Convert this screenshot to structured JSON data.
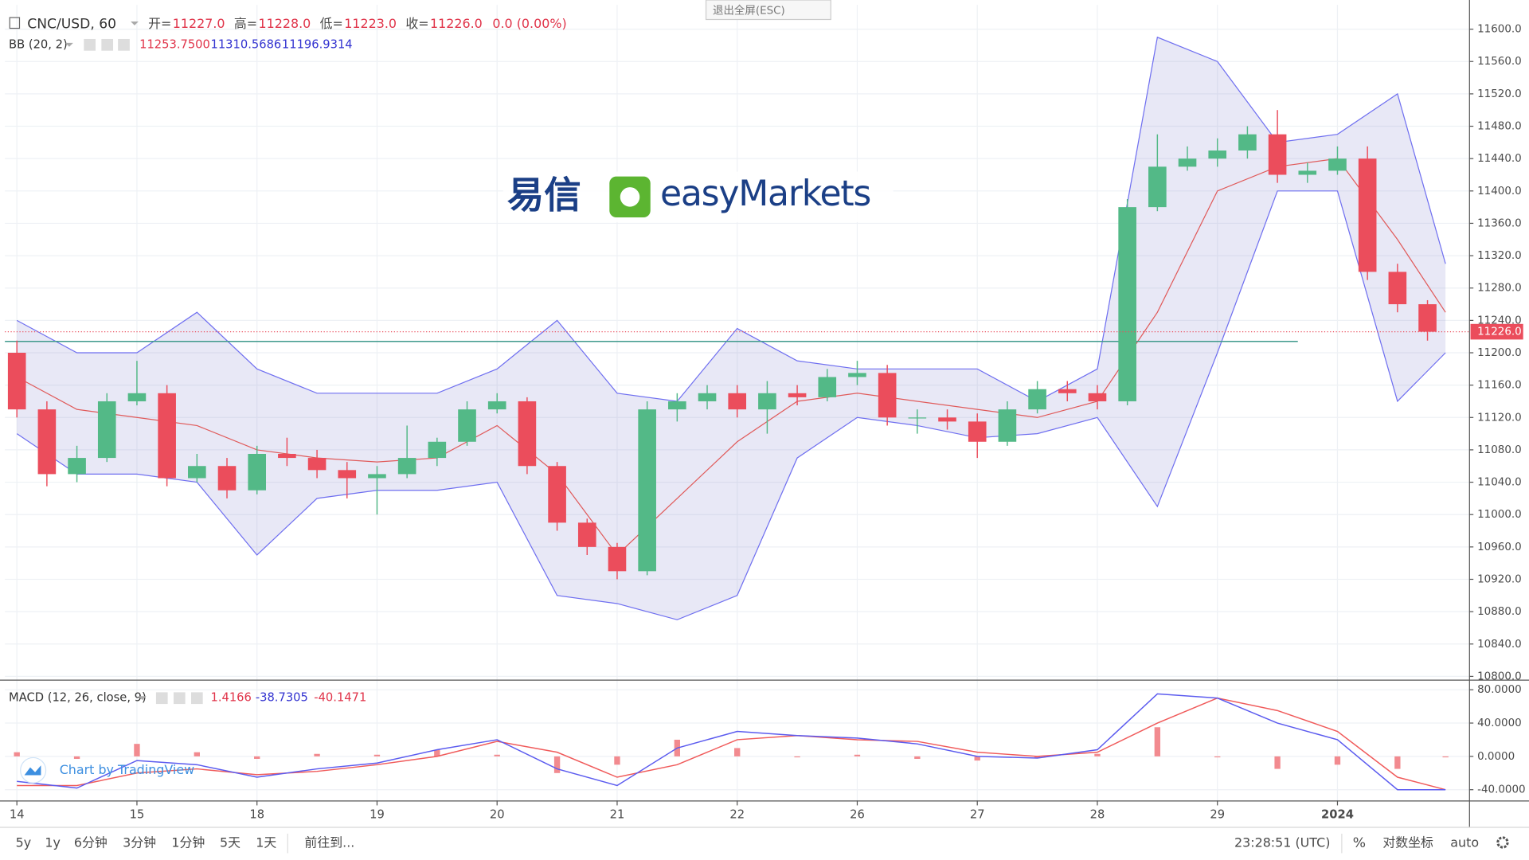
{
  "header": {
    "exit_fullscreen": "退出全屏(ESC)"
  },
  "logo": {
    "chinese": "易信",
    "brand": "easyMarkets"
  },
  "watermark": "Chart by TradingView",
  "toolbar": {
    "ranges": [
      "5y",
      "1y",
      "6分钟",
      "3分钟",
      "1分钟",
      "5天",
      "1天"
    ],
    "goto": "前往到...",
    "time": "23:28:51 (UTC)",
    "percent": "%",
    "log": "对数坐标",
    "auto": "auto"
  },
  "chart_data": [
    {
      "type": "candlestick",
      "title": "CNC/USD, 60",
      "ohlc_labels": [
        "开=",
        "高=",
        "低=",
        "收="
      ],
      "ohlc_values": [
        {
          "value": 11227,
          "label": "11227.0"
        },
        {
          "value": 11228,
          "label": "11228.0"
        },
        {
          "value": 11223,
          "label": "11223.0"
        },
        {
          "value": 11226,
          "label": "11226.0"
        }
      ],
      "change": "0.0 (0.00%)",
      "x": [
        0,
        0.25,
        0.5,
        0.75,
        1,
        1.25,
        1.5,
        1.75,
        2,
        2.25,
        2.5,
        2.75,
        3,
        3.25,
        3.5,
        3.75,
        4,
        4.25,
        4.5,
        4.75,
        5,
        5.25,
        5.5,
        5.75,
        6,
        6.25,
        6.5,
        6.75,
        7,
        7.25,
        7.5,
        7.75,
        8,
        8.25,
        8.5,
        8.75,
        9,
        9.25,
        9.5,
        9.75,
        10,
        10.25,
        10.5,
        10.75,
        11,
        11.25,
        11.5,
        11.75
      ],
      "open": [
        11200,
        11130,
        11050,
        11070,
        11140,
        11150,
        11045,
        11060,
        11030,
        11075,
        11070,
        11055,
        11045,
        11050,
        11070,
        11090,
        11130,
        11140,
        11060,
        10990,
        10960,
        10930,
        11130,
        11140,
        11150,
        11130,
        11150,
        11145,
        11170,
        11175,
        11120,
        11120,
        11115,
        11090,
        11130,
        11155,
        11150,
        11140,
        11380,
        11430,
        11440,
        11450,
        11470,
        11420,
        11425,
        11440,
        11300,
        11260
      ],
      "high": [
        11215,
        11140,
        11085,
        11150,
        11190,
        11160,
        11075,
        11070,
        11085,
        11095,
        11080,
        11065,
        11060,
        11110,
        11095,
        11140,
        11150,
        11145,
        11065,
        10995,
        10965,
        11140,
        11150,
        11160,
        11160,
        11165,
        11160,
        11180,
        11190,
        11185,
        11130,
        11130,
        11125,
        11140,
        11165,
        11165,
        11160,
        11390,
        11470,
        11455,
        11465,
        11480,
        11500,
        11435,
        11455,
        11455,
        11310,
        11265
      ],
      "low": [
        11120,
        11035,
        11040,
        11065,
        11135,
        11035,
        11040,
        11020,
        11025,
        11060,
        11045,
        11020,
        11000,
        11045,
        11060,
        11085,
        11125,
        11050,
        10980,
        10950,
        10920,
        10925,
        11115,
        11130,
        11120,
        11100,
        11135,
        11140,
        11160,
        11110,
        11100,
        11105,
        11070,
        11085,
        11125,
        11140,
        11130,
        11135,
        11375,
        11425,
        11430,
        11440,
        11410,
        11410,
        11420,
        11290,
        11250,
        11215
      ],
      "close": [
        11130,
        11050,
        11070,
        11140,
        11150,
        11045,
        11060,
        11030,
        11075,
        11070,
        11055,
        11045,
        11050,
        11070,
        11090,
        11130,
        11140,
        11060,
        10990,
        10960,
        10930,
        11130,
        11140,
        11150,
        11130,
        11150,
        11145,
        11170,
        11175,
        11120,
        11120,
        11115,
        11090,
        11130,
        11155,
        11150,
        11140,
        11380,
        11430,
        11440,
        11450,
        11470,
        11420,
        11425,
        11440,
        11300,
        11260,
        11226
      ],
      "up_color": "#53b987",
      "down_color": "#eb4d5c",
      "bands": {
        "name": "BB (20, 2)",
        "legend_values": [
          {
            "value": 11253.75,
            "label": "11253.7500"
          },
          {
            "value": 11310.5686,
            "label": "11310.5686"
          },
          {
            "value": 11196.9314,
            "label": "11196.9314"
          }
        ],
        "x": [
          0,
          0.5,
          1,
          1.5,
          2,
          2.5,
          3,
          3.5,
          4,
          4.5,
          5,
          5.5,
          6,
          6.5,
          7,
          7.5,
          8,
          8.5,
          9,
          9.5,
          10,
          10.5,
          11,
          11.5,
          11.9
        ],
        "upper": [
          11240,
          11200,
          11200,
          11250,
          11180,
          11150,
          11150,
          11150,
          11180,
          11240,
          11150,
          11140,
          11230,
          11190,
          11180,
          11180,
          11180,
          11140,
          11180,
          11590,
          11560,
          11460,
          11470,
          11520,
          11310
        ],
        "middle": [
          11170,
          11130,
          11120,
          11110,
          11080,
          11070,
          11065,
          11070,
          11110,
          11050,
          10950,
          11020,
          11090,
          11140,
          11150,
          11140,
          11130,
          11120,
          11140,
          11250,
          11400,
          11430,
          11440,
          11340,
          11250
        ],
        "lower": [
          11100,
          11050,
          11050,
          11040,
          10950,
          11020,
          11030,
          11030,
          11040,
          10900,
          10890,
          10870,
          10900,
          11070,
          11120,
          11110,
          11095,
          11100,
          11120,
          11010,
          11200,
          11400,
          11400,
          11140,
          11200
        ],
        "band_color": "#6f6ff0",
        "middle_color": "#e05a5a",
        "fill_color": "rgba(120,120,200,0.17)"
      },
      "last_price": {
        "value": 11226,
        "label": "11226.0"
      },
      "horizontal_line": 11214,
      "horizontal_line_color": "#3f9a8c",
      "xlim": [
        -0.1,
        12.1
      ],
      "xticks": [
        {
          "value": 0,
          "label": "14"
        },
        {
          "value": 1,
          "label": "15"
        },
        {
          "value": 2,
          "label": "18"
        },
        {
          "value": 3,
          "label": "19"
        },
        {
          "value": 4,
          "label": "20"
        },
        {
          "value": 5,
          "label": "21"
        },
        {
          "value": 6,
          "label": "22"
        },
        {
          "value": 7,
          "label": "26"
        },
        {
          "value": 8,
          "label": "27"
        },
        {
          "value": 9,
          "label": "28"
        },
        {
          "value": 10,
          "label": "29"
        },
        {
          "value": 11,
          "label": "2024"
        }
      ],
      "ylim": [
        10796,
        11630
      ],
      "yticks": [
        {
          "value": 10800,
          "label": "10800.0"
        },
        {
          "value": 10840,
          "label": "10840.0"
        },
        {
          "value": 10880,
          "label": "10880.0"
        },
        {
          "value": 10920,
          "label": "10920.0"
        },
        {
          "value": 10960,
          "label": "10960.0"
        },
        {
          "value": 11000,
          "label": "11000.0"
        },
        {
          "value": 11040,
          "label": "11040.0"
        },
        {
          "value": 11080,
          "label": "11080.0"
        },
        {
          "value": 11120,
          "label": "11120.0"
        },
        {
          "value": 11160,
          "label": "11160.0"
        },
        {
          "value": 11200,
          "label": "11200.0"
        },
        {
          "value": 11240,
          "label": "11240.0"
        },
        {
          "value": 11280,
          "label": "11280.0"
        },
        {
          "value": 11320,
          "label": "11320.0"
        },
        {
          "value": 11360,
          "label": "11360.0"
        },
        {
          "value": 11400,
          "label": "11400.0"
        },
        {
          "value": 11440,
          "label": "11440.0"
        },
        {
          "value": 11480,
          "label": "11480.0"
        },
        {
          "value": 11520,
          "label": "11520.0"
        },
        {
          "value": 11560,
          "label": "11560.0"
        },
        {
          "value": 11600,
          "label": "11600.0"
        }
      ],
      "grid": true
    },
    {
      "type": "macd",
      "title": "MACD (12, 26, close, 9)",
      "legend_values": [
        1.4166,
        -38.7305,
        -40.1471
      ],
      "x": [
        0,
        0.5,
        1,
        1.5,
        2,
        2.5,
        3,
        3.5,
        4,
        4.5,
        5,
        5.5,
        6,
        6.5,
        7,
        7.5,
        8,
        8.5,
        9,
        9.5,
        10,
        10.5,
        11,
        11.5,
        11.9
      ],
      "macd": [
        -30,
        -38,
        -5,
        -10,
        -25,
        -15,
        -8,
        8,
        20,
        -15,
        -35,
        10,
        30,
        25,
        22,
        15,
        0,
        -2,
        8,
        75,
        70,
        40,
        20,
        -40,
        -40
      ],
      "signal": [
        -35,
        -35,
        -20,
        -15,
        -22,
        -18,
        -10,
        0,
        18,
        5,
        -25,
        -10,
        20,
        25,
        20,
        18,
        5,
        0,
        5,
        40,
        70,
        55,
        30,
        -25,
        -40
      ],
      "histogram": [
        5,
        -3,
        15,
        5,
        -3,
        3,
        2,
        8,
        2,
        -20,
        -10,
        20,
        10,
        0,
        2,
        -3,
        -5,
        -2,
        3,
        35,
        0,
        -15,
        -10,
        -15,
        0
      ],
      "macd_color": "#5b5bef",
      "signal_color": "#f05a5a",
      "histogram_color": "#f28a8f",
      "xlim": [
        -0.1,
        12.1
      ],
      "ylim": [
        -53,
        91
      ],
      "yticks": [
        {
          "value": 80,
          "label": "80.0000"
        },
        {
          "value": 40,
          "label": "40.0000"
        },
        {
          "value": 0,
          "label": "0.0000"
        },
        {
          "value": -40,
          "label": "-40.0000"
        }
      ],
      "grid": true
    }
  ]
}
